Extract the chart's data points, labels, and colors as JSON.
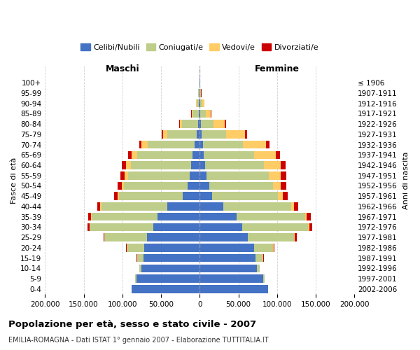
{
  "age_groups": [
    "0-4",
    "5-9",
    "10-14",
    "15-19",
    "20-24",
    "25-29",
    "30-34",
    "35-39",
    "40-44",
    "45-49",
    "50-54",
    "55-59",
    "60-64",
    "65-69",
    "70-74",
    "75-79",
    "80-84",
    "85-89",
    "90-94",
    "95-99",
    "100+"
  ],
  "anni_nascita": [
    "2002-2006",
    "1997-2001",
    "1992-1996",
    "1987-1991",
    "1982-1986",
    "1977-1981",
    "1972-1976",
    "1967-1971",
    "1962-1966",
    "1957-1961",
    "1952-1956",
    "1947-1951",
    "1942-1946",
    "1937-1941",
    "1932-1936",
    "1927-1931",
    "1922-1926",
    "1917-1921",
    "1912-1916",
    "1907-1911",
    "≤ 1906"
  ],
  "maschi": {
    "celibi": [
      88000,
      82000,
      75000,
      73000,
      72000,
      68000,
      60000,
      55000,
      42000,
      22000,
      16000,
      13000,
      11000,
      9000,
      7000,
      4000,
      2500,
      1200,
      800,
      500,
      200
    ],
    "coniugati": [
      500,
      1500,
      3000,
      8000,
      22000,
      55000,
      82000,
      85000,
      85000,
      82000,
      82000,
      80000,
      78000,
      72000,
      60000,
      38000,
      20000,
      8000,
      3500,
      1200,
      300
    ],
    "vedovi": [
      5,
      10,
      20,
      50,
      100,
      200,
      400,
      800,
      1500,
      2000,
      3000,
      4000,
      6000,
      7000,
      8000,
      5000,
      3000,
      1200,
      500,
      200,
      50
    ],
    "divorziati": [
      10,
      30,
      100,
      300,
      800,
      1500,
      2500,
      3500,
      4000,
      5000,
      5500,
      6000,
      5500,
      4500,
      3500,
      2000,
      800,
      400,
      200,
      100,
      20
    ]
  },
  "femmine": {
    "nubili": [
      88000,
      82000,
      74000,
      72000,
      70000,
      62000,
      55000,
      48000,
      30000,
      16000,
      12000,
      9000,
      7000,
      5500,
      4000,
      2500,
      1500,
      1000,
      700,
      400,
      200
    ],
    "coniugate": [
      500,
      1500,
      3500,
      10000,
      25000,
      60000,
      85000,
      88000,
      88000,
      85000,
      83000,
      80000,
      76000,
      65000,
      52000,
      32000,
      16000,
      7000,
      3000,
      1000,
      300
    ],
    "vedove": [
      5,
      15,
      30,
      100,
      300,
      800,
      1500,
      2500,
      4000,
      6000,
      10000,
      16000,
      22000,
      28000,
      30000,
      24000,
      15000,
      6000,
      2000,
      500,
      100
    ],
    "divorziate": [
      10,
      30,
      100,
      400,
      1200,
      2500,
      4000,
      5000,
      5500,
      6500,
      7000,
      7000,
      6000,
      5000,
      4000,
      2500,
      1200,
      600,
      300,
      100,
      20
    ]
  },
  "colors": {
    "celibi": "#4472C4",
    "coniugati": "#BFCD8A",
    "vedovi": "#FFCC66",
    "divorziati": "#CC0000"
  },
  "xlim": 200000,
  "title": "Popolazione per età, sesso e stato civile - 2007",
  "subtitle": "EMILIA-ROMAGNA - Dati ISTAT 1° gennaio 2007 - Elaborazione TUTTITALIA.IT",
  "ylabel_left": "Fasce di età",
  "ylabel_right": "Anni di nascita",
  "xlabel_left": "Maschi",
  "xlabel_right": "Femmine",
  "legend_labels": [
    "Celibi/Nubili",
    "Coniugati/e",
    "Vedovi/e",
    "Divorziati/e"
  ],
  "background_color": "#FFFFFF",
  "grid_color": "#CCCCCC"
}
